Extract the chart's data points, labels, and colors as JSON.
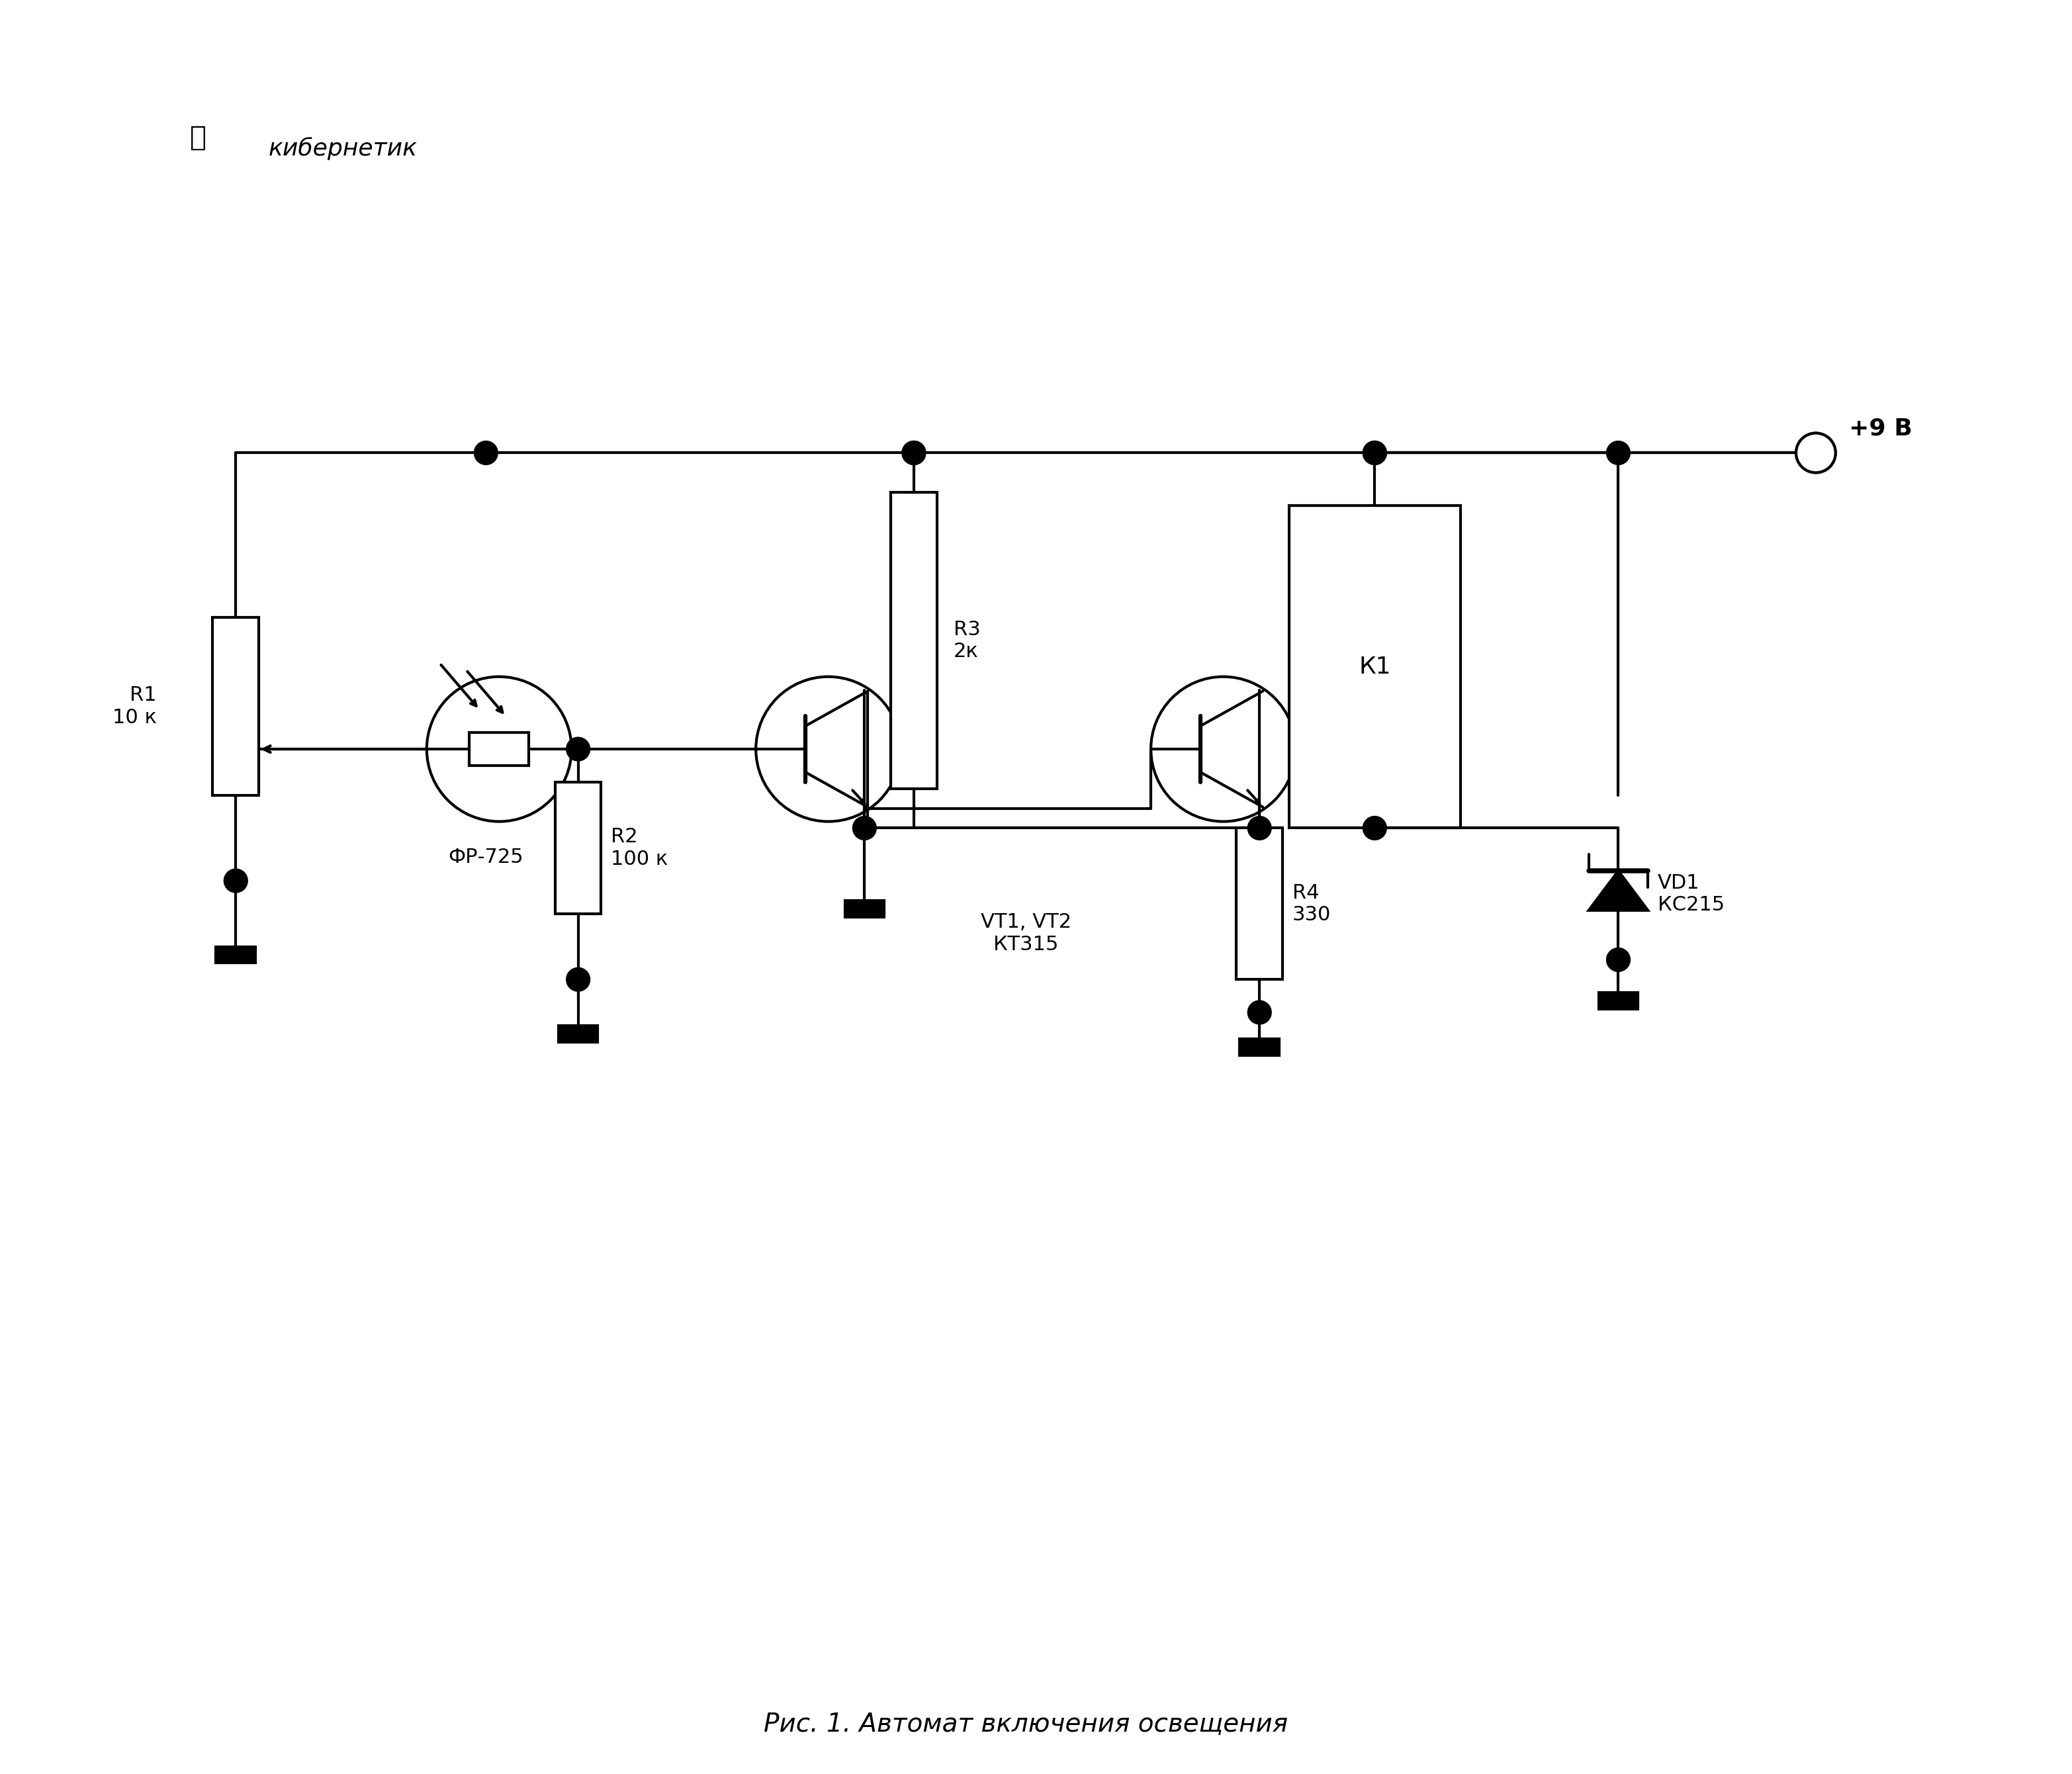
{
  "title": "Рис. 1. Автомат включения освещения",
  "watermark": "кибернетик",
  "supply_label": "+9 В",
  "components": {
    "R1": {
      "label": "R1\n10 к"
    },
    "R2": {
      "label": "R2\n100 к"
    },
    "R3": {
      "label": "R3\n2к"
    },
    "R4": {
      "label": "R4\n330"
    },
    "K1": {
      "label": "К1"
    },
    "VD1": {
      "label": "VD1\nКС215"
    },
    "FR": {
      "label": "ФР-725"
    },
    "VT": {
      "label": "VT1, VT2\nКТ315"
    }
  },
  "bg_color": "#ffffff",
  "line_color": "#000000",
  "line_width": 3.0,
  "font_size_label": 22,
  "font_size_title": 28
}
